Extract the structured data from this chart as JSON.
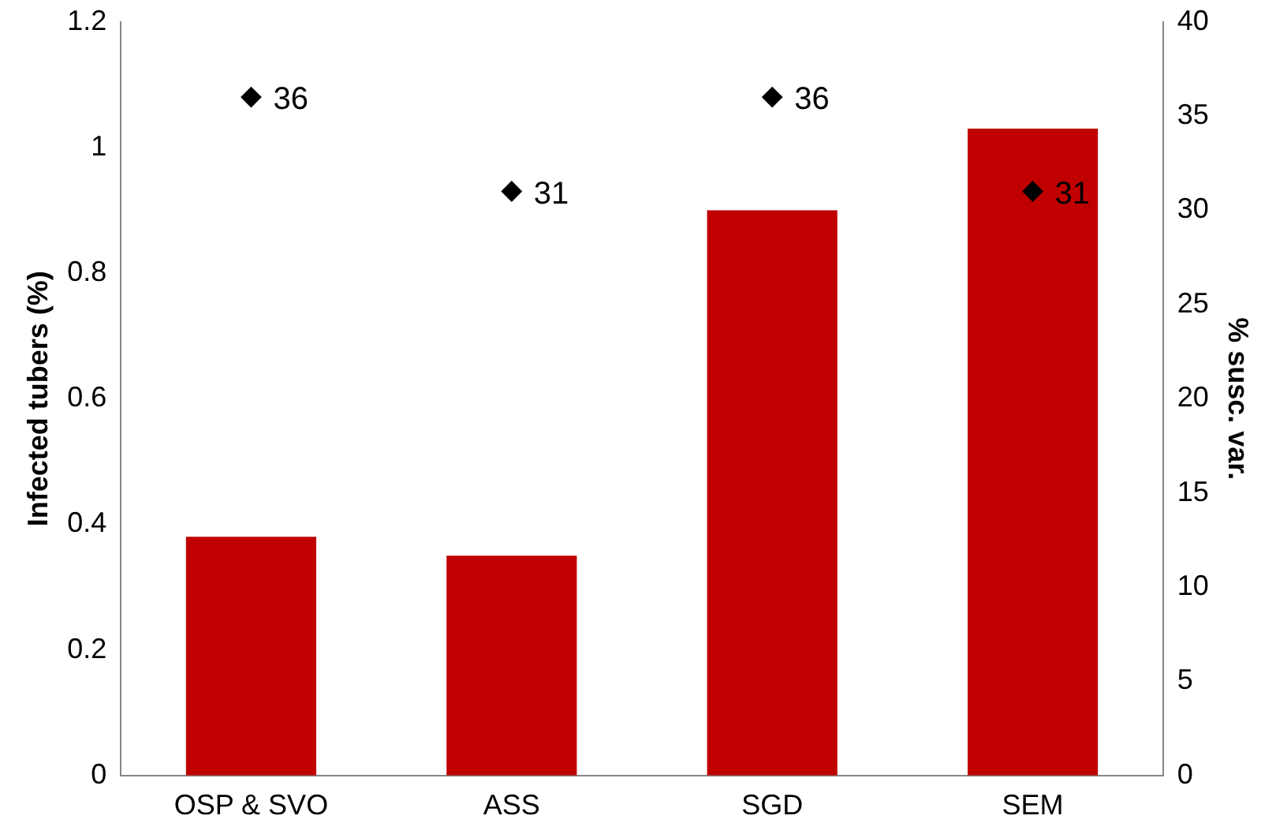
{
  "chart_data": {
    "type": "bar",
    "ylabel": "Infected tubers (%)",
    "y2label": "% susc. var.",
    "categories": [
      "OSP & SVO",
      "ASS",
      "SGD",
      "SEM"
    ],
    "series": [
      {
        "color": "#c00000",
        "values": [
          0.38,
          0.35,
          0.9,
          1.03
        ]
      },
      {
        "type": "scatter",
        "axis": "y2",
        "x": [
          "OSP & SVO",
          "ASS",
          "SGD",
          "SEM"
        ],
        "color": "#000000",
        "marker": "diamond",
        "values": [
          36,
          31,
          36,
          31
        ],
        "value_labels": [
          "36",
          "31",
          "36",
          "31"
        ]
      }
    ],
    "ylim": [
      0,
      1.2
    ],
    "yticks": [
      0,
      0.2,
      0.4,
      0.6,
      0.8,
      1,
      1.2
    ],
    "y2lim": [
      0,
      40
    ],
    "y2ticks": [
      0,
      5,
      10,
      15,
      20,
      25,
      30,
      35,
      40
    ],
    "grid": false,
    "legend": false
  }
}
